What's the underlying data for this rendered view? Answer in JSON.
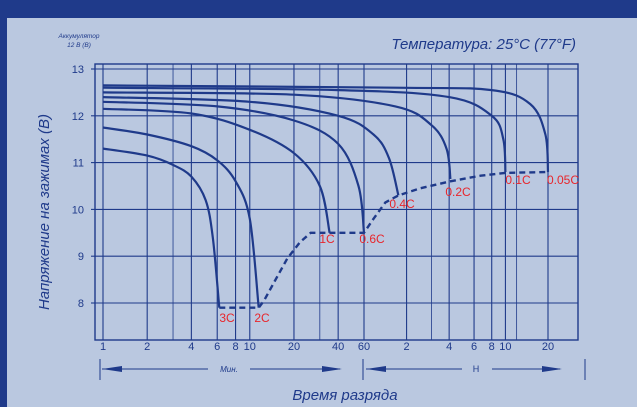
{
  "chart_data": {
    "type": "line",
    "title": "Температура: 25°C (77°F)",
    "battery_label": [
      "Аккумулятор",
      "12 В (В)"
    ],
    "xlabel": "Время разряда",
    "ylabel": "Напряжение на зажимах (В)",
    "x_unit_labels": {
      "minutes": "Мин.",
      "hours": "Н"
    },
    "x_scale": "log (minutes 1–60, then hours 1–20)",
    "x_ticks": [
      {
        "label": "1",
        "minutes": 1
      },
      {
        "label": "2",
        "minutes": 2
      },
      {
        "label": "4",
        "minutes": 4
      },
      {
        "label": "6",
        "minutes": 6
      },
      {
        "label": "8",
        "minutes": 8
      },
      {
        "label": "10",
        "minutes": 10
      },
      {
        "label": "20",
        "minutes": 20
      },
      {
        "label": "40",
        "minutes": 40
      },
      {
        "label": "60",
        "minutes": 60
      },
      {
        "label": "2",
        "minutes": 120
      },
      {
        "label": "4",
        "minutes": 240
      },
      {
        "label": "6",
        "minutes": 360
      },
      {
        "label": "8",
        "minutes": 480
      },
      {
        "label": "10",
        "minutes": 600
      },
      {
        "label": "20",
        "minutes": 1200
      }
    ],
    "y_ticks": [
      8,
      9,
      10,
      11,
      12,
      13
    ],
    "ylim": [
      7.3,
      13.2
    ],
    "series": [
      {
        "name": "3C",
        "points": [
          [
            1,
            11.3
          ],
          [
            2,
            11.15
          ],
          [
            3,
            10.95
          ],
          [
            4,
            10.7
          ],
          [
            5,
            10.2
          ],
          [
            5.6,
            9.4
          ],
          [
            6.2,
            7.9
          ]
        ]
      },
      {
        "name": "2C",
        "points": [
          [
            1,
            11.75
          ],
          [
            2,
            11.6
          ],
          [
            4,
            11.35
          ],
          [
            6,
            11.05
          ],
          [
            8,
            10.6
          ],
          [
            10,
            9.8
          ],
          [
            11.5,
            7.9
          ]
        ]
      },
      {
        "name": "1C",
        "points": [
          [
            1,
            12.15
          ],
          [
            4,
            12.05
          ],
          [
            10,
            11.7
          ],
          [
            20,
            11.2
          ],
          [
            30,
            10.5
          ],
          [
            35,
            9.5
          ]
        ]
      },
      {
        "name": "0.6C",
        "points": [
          [
            1,
            12.3
          ],
          [
            6,
            12.2
          ],
          [
            20,
            11.9
          ],
          [
            40,
            11.4
          ],
          [
            55,
            10.5
          ],
          [
            60,
            9.5
          ]
        ]
      },
      {
        "name": "0.4C",
        "points": [
          [
            1,
            12.4
          ],
          [
            10,
            12.3
          ],
          [
            40,
            12.0
          ],
          [
            70,
            11.6
          ],
          [
            90,
            11.1
          ],
          [
            105,
            10.3
          ]
        ]
      },
      {
        "name": "0.2C",
        "points": [
          [
            1,
            12.5
          ],
          [
            20,
            12.45
          ],
          [
            100,
            12.2
          ],
          [
            180,
            11.8
          ],
          [
            230,
            11.3
          ],
          [
            245,
            10.65
          ]
        ]
      },
      {
        "name": "0.1C",
        "points": [
          [
            1,
            12.6
          ],
          [
            40,
            12.55
          ],
          [
            240,
            12.4
          ],
          [
            480,
            12.0
          ],
          [
            580,
            11.5
          ],
          [
            600,
            10.8
          ]
        ]
      },
      {
        "name": "0.05C",
        "points": [
          [
            1,
            12.65
          ],
          [
            100,
            12.6
          ],
          [
            480,
            12.55
          ],
          [
            900,
            12.25
          ],
          [
            1150,
            11.6
          ],
          [
            1200,
            10.8
          ]
        ]
      }
    ],
    "cutoff_line": {
      "style": "dashed",
      "points": [
        [
          6.2,
          7.9
        ],
        [
          11.5,
          7.9
        ],
        [
          12.5,
          8.05
        ],
        [
          15,
          8.5
        ],
        [
          18,
          8.95
        ],
        [
          22,
          9.3
        ],
        [
          26,
          9.5
        ],
        [
          35,
          9.5
        ],
        [
          60,
          9.5
        ],
        [
          70,
          9.8
        ],
        [
          85,
          10.15
        ],
        [
          105,
          10.3
        ],
        [
          150,
          10.45
        ],
        [
          245,
          10.6
        ],
        [
          400,
          10.72
        ],
        [
          600,
          10.78
        ],
        [
          1200,
          10.8
        ]
      ]
    },
    "grid": true,
    "legend": "none (rates labeled at curve ends)"
  }
}
